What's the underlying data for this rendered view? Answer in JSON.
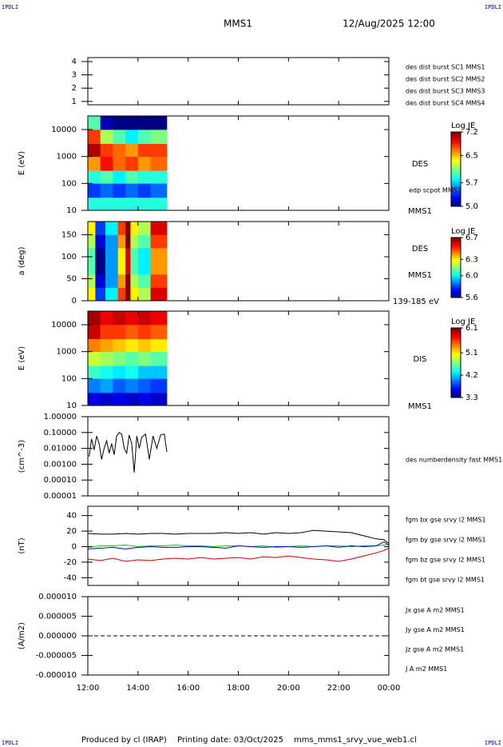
{
  "header": {
    "logo": "IPDLI",
    "title": "MMS1",
    "datetime": "12/Aug/2025 12:00"
  },
  "footer": {
    "producer": "Produced by cl (IRAP)",
    "printing_date": "Printing date: 03/Oct/2025",
    "file": "mms_mms1_srvy_vue_web1.cl"
  },
  "chart_data": [
    {
      "type": "line",
      "ylim": [
        0.75,
        4.3
      ],
      "yticks": [
        1,
        2,
        3,
        4
      ],
      "series": [
        {
          "name": "des dist burst SC1 MMS1",
          "color": "#0000ff",
          "x": [],
          "values": []
        },
        {
          "name": "des dist burst SC2 MMS2",
          "color": "#cc00cc",
          "x": [],
          "values": []
        },
        {
          "name": "des dist burst SC3 MMS3",
          "color": "#dd0000",
          "x": [],
          "values": []
        },
        {
          "name": "des dist burst SC4 MMS4",
          "color": "#00cc00",
          "x": [],
          "values": []
        }
      ]
    },
    {
      "type": "heatmap",
      "ylabel": "E (eV)",
      "log": true,
      "ylim": [
        10,
        32000
      ],
      "yticks": [
        10,
        100,
        1000,
        10000
      ],
      "x_edges": [
        12,
        12.5,
        13,
        13.5,
        14,
        14.5,
        15.15
      ],
      "y_edges": [
        10,
        30,
        100,
        300,
        1000,
        3000,
        10000,
        32000
      ],
      "z": [
        [
          5.9,
          5.9,
          5.9,
          5.9,
          5.9,
          5.9
        ],
        [
          5.4,
          5.5,
          5.4,
          5.5,
          5.4,
          5.5
        ],
        [
          5.9,
          6.0,
          5.8,
          6.0,
          5.9,
          5.9
        ],
        [
          6.6,
          6.9,
          6.7,
          6.8,
          6.6,
          6.7
        ],
        [
          7.1,
          6.8,
          6.7,
          6.6,
          6.8,
          6.8
        ],
        [
          6.8,
          6.2,
          6.0,
          5.8,
          6.0,
          6.1
        ],
        [
          6.0,
          5.1,
          5.0,
          5.0,
          5.0,
          5.0
        ]
      ],
      "colorbar": {
        "title": "Log JE",
        "clim": [
          5.0,
          7.2
        ],
        "ticks": [
          {
            "value": 5.0,
            "label": "5.0"
          },
          5.7,
          6.5,
          7.2
        ]
      },
      "annotations": [
        "DES",
        "edp scpot MMS1",
        "MMS1"
      ]
    },
    {
      "type": "heatmap",
      "ylabel": "a (deg)",
      "ylim": [
        0,
        180
      ],
      "yticks": [
        0,
        50,
        100,
        150
      ],
      "x_edges": [
        12,
        12.3,
        12.7,
        13.2,
        13.5,
        13.7,
        14.0,
        14.5,
        15.15
      ],
      "y_edges": [
        0,
        30,
        60,
        90,
        120,
        150,
        180
      ],
      "z": [
        [
          6.3,
          5.8,
          6.0,
          6.5,
          6.7,
          6.3,
          6.2,
          6.6
        ],
        [
          6.2,
          5.7,
          5.9,
          6.4,
          6.7,
          6.2,
          6.1,
          6.5
        ],
        [
          6.1,
          5.6,
          5.9,
          6.3,
          6.6,
          6.1,
          6.0,
          6.4
        ],
        [
          6.1,
          5.6,
          5.9,
          6.3,
          6.6,
          6.1,
          6.0,
          6.4
        ],
        [
          6.2,
          5.7,
          5.9,
          6.4,
          6.7,
          6.2,
          6.1,
          6.5
        ],
        [
          6.3,
          5.8,
          6.0,
          6.5,
          6.7,
          6.3,
          6.2,
          6.6
        ]
      ],
      "colorbar": {
        "title": "Log JE",
        "clim": [
          5.6,
          6.7
        ],
        "ticks": [
          5.6,
          {
            "value": 6.0,
            "label": "6.0"
          },
          6.3,
          6.7
        ]
      },
      "annotations": [
        "DES",
        "MMS1",
        "139-185 eV"
      ]
    },
    {
      "type": "heatmap",
      "ylabel": "E (eV)",
      "log": true,
      "ylim": [
        10,
        32000
      ],
      "yticks": [
        10,
        100,
        1000,
        10000
      ],
      "x_edges": [
        12,
        12.5,
        13,
        13.5,
        14,
        14.5,
        15.15
      ],
      "y_edges": [
        10,
        30,
        100,
        300,
        1000,
        3000,
        10000,
        32000
      ],
      "z": [
        [
          3.6,
          3.5,
          3.6,
          3.5,
          3.6,
          3.5
        ],
        [
          4.0,
          4.1,
          3.9,
          4.0,
          3.9,
          3.8
        ],
        [
          4.5,
          4.4,
          4.3,
          4.4,
          4.2,
          4.2
        ],
        [
          4.9,
          4.8,
          4.7,
          4.6,
          4.7,
          4.6
        ],
        [
          5.4,
          5.3,
          5.2,
          5.1,
          5.2,
          5.1
        ],
        [
          5.9,
          5.6,
          5.6,
          5.5,
          5.6,
          5.5
        ],
        [
          6.0,
          5.8,
          5.9,
          5.8,
          5.9,
          5.8
        ]
      ],
      "colorbar": {
        "title": "Log JE",
        "clim": [
          3.3,
          6.1
        ],
        "ticks": [
          3.3,
          4.2,
          5.1,
          6.1
        ]
      },
      "annotations": [
        "DIS",
        "MMS1"
      ]
    },
    {
      "type": "line",
      "ylabel": "(cm^-3)",
      "log": true,
      "ylim": [
        1e-05,
        1
      ],
      "yticks": [
        {
          "value": 1e-05,
          "label": "0.00001"
        },
        {
          "value": 0.0001,
          "label": "0.00010"
        },
        {
          "value": 0.001,
          "label": "0.00100"
        },
        {
          "value": 0.01,
          "label": "0.01000"
        },
        {
          "value": 0.1,
          "label": "0.10000"
        },
        {
          "value": 1,
          "label": "1.00000"
        }
      ],
      "series": [
        {
          "name": "des numberdensity fast MMS1",
          "color": "#000000",
          "x": [
            12.05,
            12.15,
            12.25,
            12.35,
            12.45,
            12.55,
            12.65,
            12.75,
            12.85,
            12.95,
            13.05,
            13.15,
            13.25,
            13.35,
            13.45,
            13.55,
            13.65,
            13.75,
            13.85,
            13.95,
            14.05,
            14.15,
            14.3,
            14.45,
            14.6,
            14.75,
            14.9,
            15.05,
            15.15
          ],
          "values": [
            0.003,
            0.04,
            0.008,
            0.06,
            0.02,
            0.002,
            0.01,
            0.03,
            0.005,
            0.02,
            0.004,
            0.06,
            0.1,
            0.08,
            0.01,
            0.005,
            0.07,
            0.02,
            0.0003,
            0.06,
            0.01,
            0.05,
            0.08,
            0.002,
            0.06,
            0.01,
            0.07,
            0.08,
            0.006
          ]
        }
      ]
    },
    {
      "type": "line",
      "ylabel": "(nT)",
      "ylim": [
        -50,
        52
      ],
      "yticks": [
        -40,
        -20,
        0,
        20,
        40
      ],
      "series": [
        {
          "name": "fgm bx gse srvy l2 MMS1",
          "color": "#cc0000",
          "x": [
            12,
            12.5,
            13,
            13.5,
            14,
            14.5,
            15,
            15.5,
            16,
            16.5,
            17,
            17.5,
            18,
            18.5,
            19,
            19.5,
            20,
            20.5,
            21,
            21.5,
            22,
            22.5,
            23,
            23.5,
            23.8,
            24
          ],
          "values": [
            -16,
            -18,
            -15,
            -19,
            -17,
            -18,
            -16,
            -15,
            -16,
            -14,
            -16,
            -15,
            -14,
            -16,
            -13,
            -14,
            -12,
            -14,
            -16,
            -17,
            -19,
            -16,
            -12,
            -8,
            -5,
            -2
          ]
        },
        {
          "name": "fgm by gse srvy l2 MMS1",
          "color": "#00cc00",
          "x": [
            12,
            12.5,
            13,
            13.5,
            14,
            14.5,
            15,
            15.5,
            16,
            16.5,
            17,
            17.5,
            18,
            18.5,
            19,
            19.5,
            20,
            20.5,
            21,
            21.5,
            22,
            22.5,
            23,
            23.5,
            23.8,
            24
          ],
          "values": [
            -1,
            1,
            1,
            2,
            0,
            1,
            1,
            2,
            1,
            1,
            0,
            1,
            1,
            0,
            1,
            -1,
            0,
            1,
            0,
            1,
            1,
            0,
            1,
            1,
            2,
            3
          ]
        },
        {
          "name": "fgm bz gse srvy l2 MMS1",
          "color": "#0000cc",
          "x": [
            12,
            12.5,
            13,
            13.5,
            14,
            14.5,
            15,
            15.5,
            16,
            16.5,
            17,
            17.5,
            18,
            18.5,
            19,
            19.5,
            20,
            20.5,
            21,
            21.5,
            22,
            22.5,
            23,
            23.5,
            23.8,
            24
          ],
          "values": [
            -3,
            -2,
            -1,
            -3,
            -1,
            0,
            -1,
            -1,
            0,
            0,
            -1,
            -2,
            1,
            0,
            -1,
            0,
            0,
            -1,
            0,
            1,
            -1,
            1,
            0,
            1,
            6,
            2
          ]
        },
        {
          "name": "fgm bt gse srvy l2 MMS1",
          "color": "#000000",
          "x": [
            12,
            12.5,
            13,
            13.5,
            14,
            14.5,
            15,
            15.5,
            16,
            16.5,
            17,
            17.5,
            18,
            18.5,
            19,
            19.5,
            20,
            20.5,
            21,
            21.5,
            22,
            22.5,
            23,
            23.5,
            23.8,
            24
          ],
          "values": [
            17,
            16,
            16,
            17,
            16,
            17,
            17,
            16,
            17,
            17,
            17,
            18,
            17,
            18,
            16,
            18,
            17,
            18,
            21,
            20,
            19,
            18,
            14,
            10,
            9,
            4
          ]
        }
      ]
    },
    {
      "type": "line",
      "ylabel": "(A/m2)",
      "ylim": [
        -1e-05,
        1e-05
      ],
      "yticks": [
        {
          "value": -1e-05,
          "label": "-0.000010"
        },
        {
          "value": -5e-06,
          "label": "-0.000005"
        },
        {
          "value": 0,
          "label": "0.000000"
        },
        {
          "value": 5e-06,
          "label": "0.000005"
        },
        {
          "value": 1e-05,
          "label": "0.000010"
        }
      ],
      "reference_line": {
        "value": 0,
        "style": "dashed"
      },
      "series": [
        {
          "name": "Jx gse A m2 MMS1",
          "color": "#cc0000",
          "x": [],
          "values": []
        },
        {
          "name": "Jy gse A m2 MMS1",
          "color": "#00cc00",
          "x": [],
          "values": []
        },
        {
          "name": "Jz gse A m2 MMS1",
          "color": "#0000cc",
          "x": [],
          "values": []
        },
        {
          "name": "J A m2 MMS1",
          "color": "#000000",
          "x": [],
          "values": []
        }
      ],
      "xlim": [
        12,
        24
      ],
      "xticks": [
        {
          "value": 12,
          "label": "12:00"
        },
        {
          "value": 14,
          "label": "14:00"
        },
        {
          "value": 16,
          "label": "16:00"
        },
        {
          "value": 18,
          "label": "18:00"
        },
        {
          "value": 20,
          "label": "20:00"
        },
        {
          "value": 22,
          "label": "22:00"
        },
        {
          "value": 24,
          "label": "00:00"
        }
      ]
    }
  ]
}
